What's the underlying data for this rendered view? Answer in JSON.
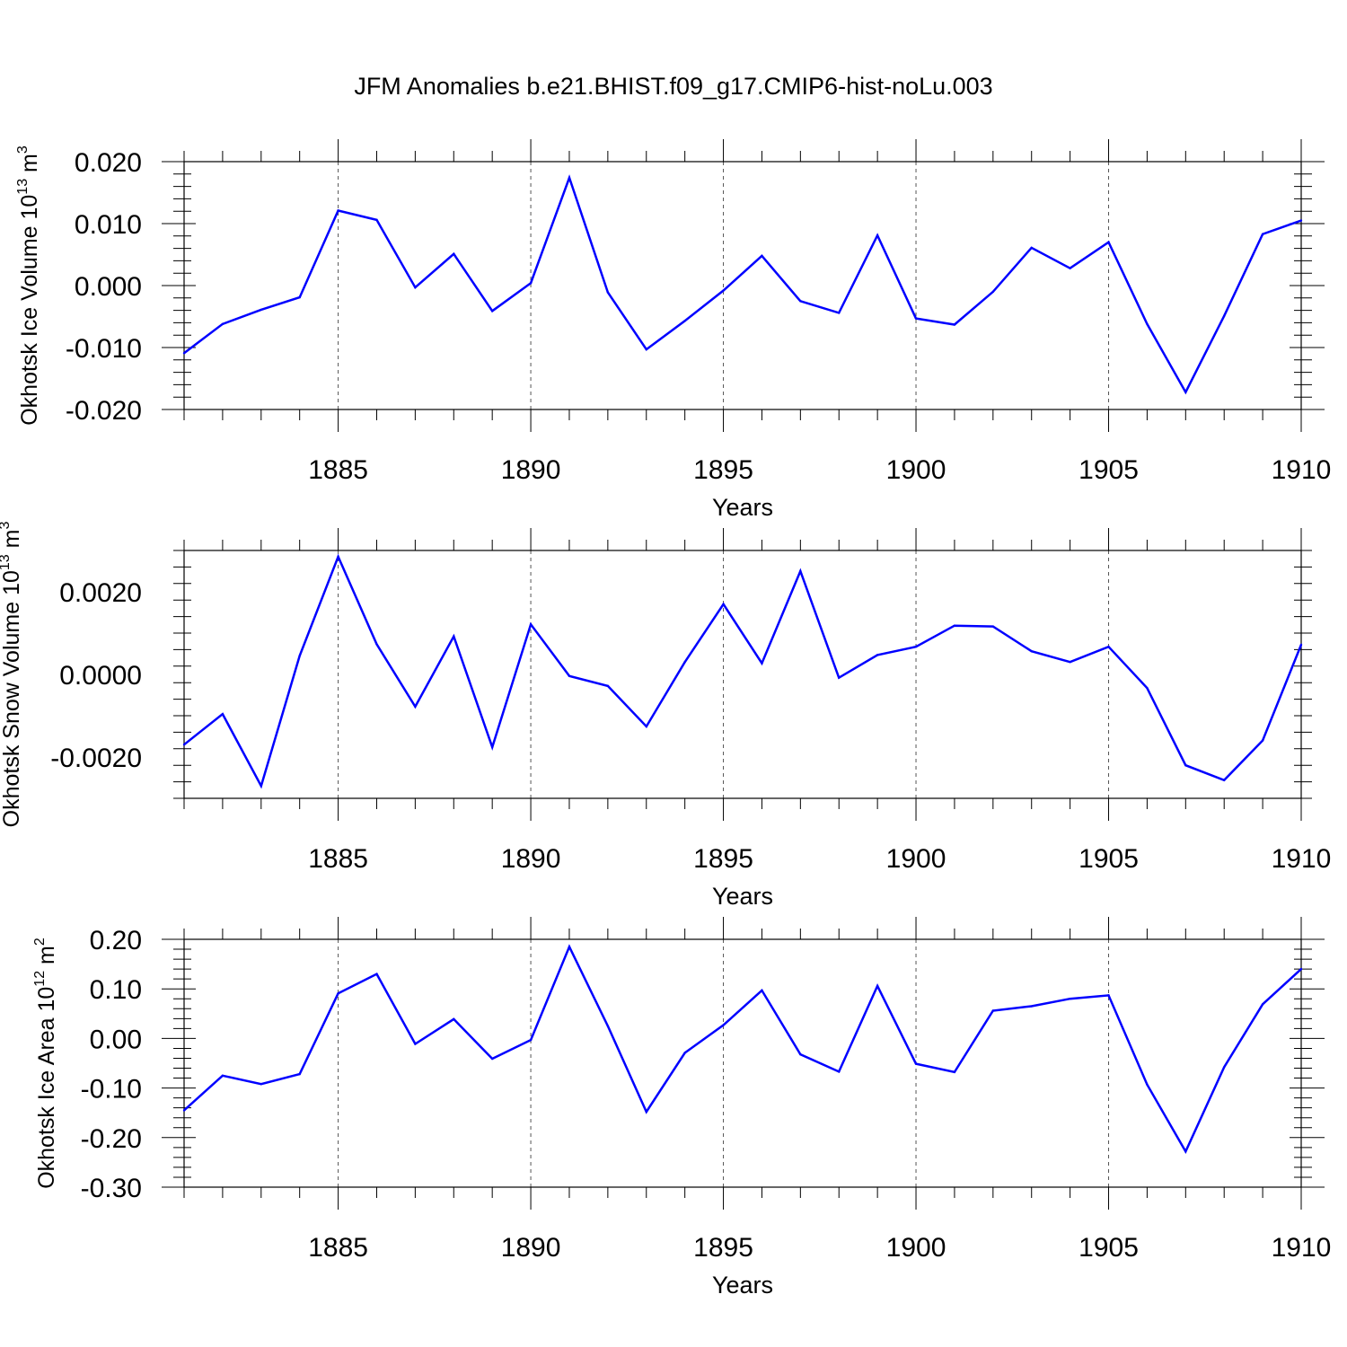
{
  "figure_title": "JFM Anomalies b.e21.BHIST.f09_g17.CMIP6-hist-noLu.003",
  "chart_data": [
    {
      "type": "line",
      "title": "JFM Anomalies b.e21.BHIST.f09_g17.CMIP6-hist-noLu.003",
      "xlabel": "Years",
      "ylabel": "Okhotsk Ice Volume 10",
      "ylabel_exp": "13",
      "ylabel_unit": " m",
      "ylabel_unit_exp": "3",
      "xlim": [
        1881,
        1910
      ],
      "ylim": [
        -0.02,
        0.02
      ],
      "xticks": [
        1885,
        1890,
        1895,
        1900,
        1905,
        1910
      ],
      "xtick_labels": [
        "1885",
        "1890",
        "1895",
        "1900",
        "1905",
        "1910"
      ],
      "yticks": [
        0.02,
        0.01,
        0.0,
        -0.01,
        -0.02
      ],
      "ytick_labels": [
        "0.020",
        "0.010",
        "0.000",
        "-0.010",
        "-0.020"
      ],
      "line_color": "#0000ff",
      "x": [
        1881,
        1882,
        1883,
        1884,
        1885,
        1886,
        1887,
        1888,
        1889,
        1890,
        1891,
        1892,
        1893,
        1894,
        1895,
        1896,
        1897,
        1898,
        1899,
        1900,
        1901,
        1902,
        1903,
        1904,
        1905,
        1906,
        1907,
        1908,
        1909,
        1910
      ],
      "values": [
        -0.0109,
        -0.0062,
        -0.0039,
        -0.0019,
        0.0121,
        0.0106,
        -0.0003,
        0.0051,
        -0.0041,
        0.0004,
        0.0174,
        -0.0011,
        -0.0103,
        -0.0057,
        -0.0008,
        0.0048,
        -0.0025,
        -0.0044,
        0.0081,
        -0.0053,
        -0.0063,
        -0.001,
        0.0061,
        0.0028,
        0.007,
        -0.0062,
        -0.0172,
        -0.0049,
        0.0083,
        0.0105
      ]
    },
    {
      "type": "line",
      "xlabel": "Years",
      "ylabel": "Okhotsk Snow Volume 10",
      "ylabel_exp": "13",
      "ylabel_unit": " m",
      "ylabel_unit_exp": "3",
      "xlim": [
        1881,
        1910
      ],
      "ylim": [
        -0.003,
        0.003
      ],
      "xticks": [
        1885,
        1890,
        1895,
        1900,
        1905,
        1910
      ],
      "xtick_labels": [
        "1885",
        "1890",
        "1895",
        "1900",
        "1905",
        "1910"
      ],
      "yticks": [
        0.002,
        0.0,
        -0.002
      ],
      "ytick_labels": [
        "0.0020",
        "0.0000",
        "-0.0020"
      ],
      "line_color": "#0000ff",
      "x": [
        1881,
        1882,
        1883,
        1884,
        1885,
        1886,
        1887,
        1888,
        1889,
        1890,
        1891,
        1892,
        1893,
        1894,
        1895,
        1896,
        1897,
        1898,
        1899,
        1900,
        1901,
        1902,
        1903,
        1904,
        1905,
        1906,
        1907,
        1908,
        1909,
        1910
      ],
      "values": [
        -0.0017,
        -0.00096,
        -0.0027,
        0.00045,
        0.00285,
        0.00073,
        -0.00078,
        0.00092,
        -0.00176,
        0.00121,
        -4e-05,
        -0.00028,
        -0.00126,
        0.0003,
        0.0017,
        0.00027,
        0.0025,
        -8e-05,
        0.00047,
        0.00067,
        0.00118,
        0.00116,
        0.00056,
        0.0003,
        0.00067,
        -0.00033,
        -0.0022,
        -0.00256,
        -0.0016,
        0.00072
      ]
    },
    {
      "type": "line",
      "xlabel": "Years",
      "ylabel": "Okhotsk Ice Area 10",
      "ylabel_exp": "12",
      "ylabel_unit": " m",
      "ylabel_unit_exp": "2",
      "xlim": [
        1881,
        1910
      ],
      "ylim": [
        -0.3,
        0.2
      ],
      "xticks": [
        1885,
        1890,
        1895,
        1900,
        1905,
        1910
      ],
      "xtick_labels": [
        "1885",
        "1890",
        "1895",
        "1900",
        "1905",
        "1910"
      ],
      "yticks": [
        0.2,
        0.1,
        0.0,
        -0.1,
        -0.2,
        -0.3
      ],
      "ytick_labels": [
        "0.20",
        "0.10",
        "0.00",
        "-0.10",
        "-0.20",
        "-0.30"
      ],
      "line_color": "#0000ff",
      "x": [
        1881,
        1882,
        1883,
        1884,
        1885,
        1886,
        1887,
        1888,
        1889,
        1890,
        1891,
        1892,
        1893,
        1894,
        1895,
        1896,
        1897,
        1898,
        1899,
        1900,
        1901,
        1902,
        1903,
        1904,
        1905,
        1906,
        1907,
        1908,
        1909,
        1910
      ],
      "values": [
        -0.145,
        -0.075,
        -0.092,
        -0.072,
        0.091,
        0.13,
        -0.011,
        0.039,
        -0.041,
        -0.003,
        0.185,
        0.025,
        -0.148,
        -0.029,
        0.027,
        0.097,
        -0.032,
        -0.067,
        0.106,
        -0.051,
        -0.068,
        0.056,
        0.065,
        0.08,
        0.087,
        -0.093,
        -0.228,
        -0.058,
        0.069,
        0.14
      ]
    }
  ]
}
